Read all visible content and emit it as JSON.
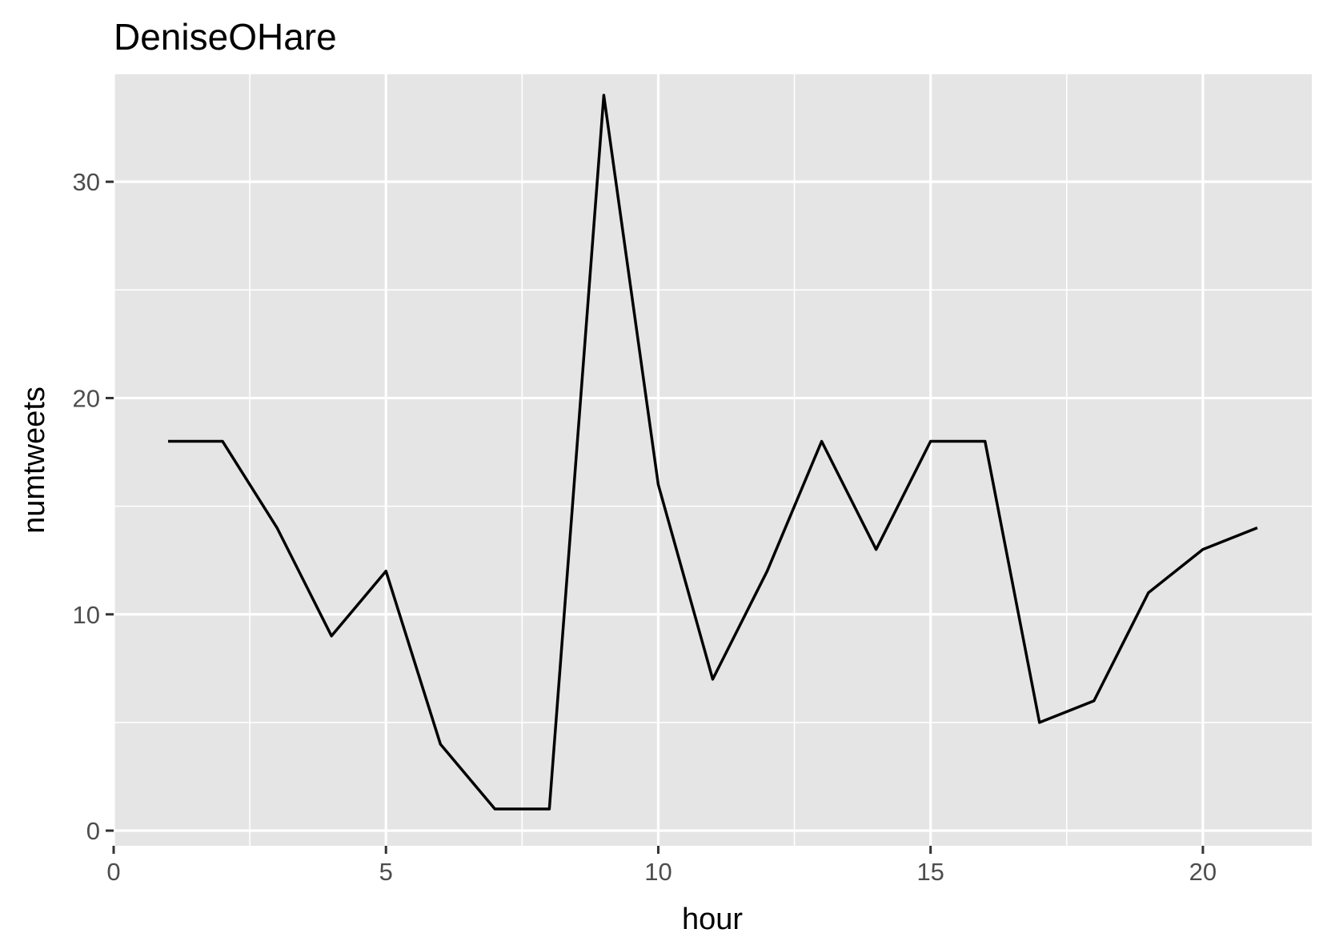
{
  "chart_data": {
    "type": "line",
    "title": "DeniseOHare",
    "xlabel": "hour",
    "ylabel": "numtweets",
    "xlim": [
      0,
      22
    ],
    "ylim": [
      -0.7,
      35
    ],
    "x_ticks": [
      0,
      5,
      10,
      15,
      20
    ],
    "y_ticks": [
      0,
      10,
      20,
      30
    ],
    "x_minor": [
      2.5,
      7.5,
      12.5,
      17.5
    ],
    "y_minor": [
      5,
      15,
      25,
      35
    ],
    "grid": true,
    "legend": "none",
    "colors": {
      "panel": "#e5e5e5",
      "grid": "#ffffff",
      "line": "#000000",
      "tick_text": "#4d4d4d"
    },
    "series": [
      {
        "x": [
          1,
          2,
          3,
          4,
          5,
          6,
          7,
          8,
          9,
          10,
          11,
          12,
          13,
          14,
          15,
          16,
          17,
          18,
          19,
          20,
          21
        ],
        "values": [
          18,
          18,
          14,
          9,
          12,
          4,
          1,
          1,
          34,
          16,
          7,
          12,
          18,
          13,
          18,
          18,
          5,
          6,
          11,
          13,
          14
        ]
      }
    ]
  }
}
